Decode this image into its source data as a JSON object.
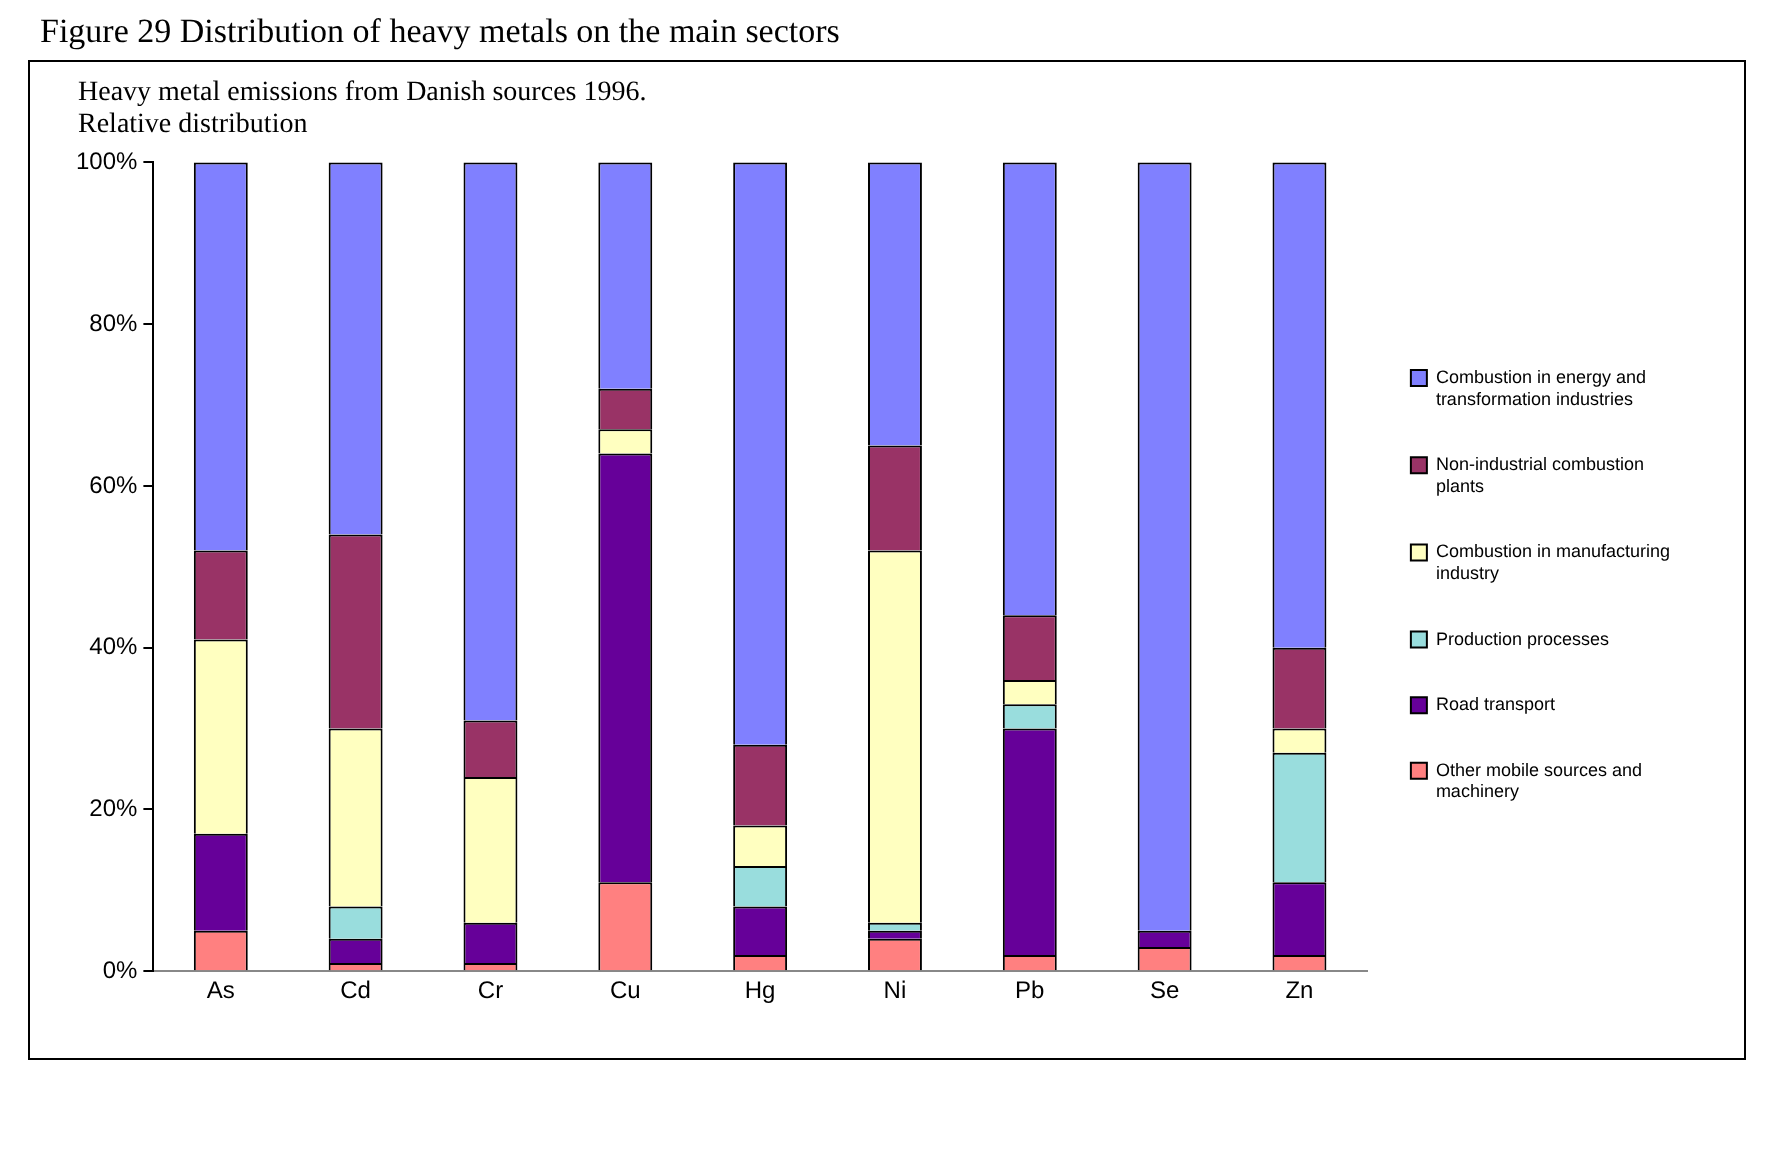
{
  "chart_data": {
    "type": "bar",
    "stacked": true,
    "title": "Figure 29 Distribution of heavy metals on the main sectors",
    "subtitle": "Heavy metal emissions from Danish sources 1996.",
    "annotations": [
      "Relative distribution"
    ],
    "categories": [
      "As",
      "Cd",
      "Cr",
      "Cu",
      "Hg",
      "Ni",
      "Pb",
      "Se",
      "Zn"
    ],
    "series": [
      {
        "name": "Other mobile sources and machinery",
        "color": "#ff8080",
        "values": [
          5,
          1,
          1,
          11,
          2,
          4,
          2,
          3,
          2
        ]
      },
      {
        "name": "Road transport",
        "color": "#660099",
        "values": [
          12,
          3,
          5,
          53,
          6,
          1,
          28,
          2,
          9
        ]
      },
      {
        "name": "Production processes",
        "color": "#99dddd",
        "values": [
          0,
          4,
          0,
          0,
          5,
          1,
          3,
          0,
          16
        ]
      },
      {
        "name": "Combustion in manufacturing industry",
        "color": "#ffffc0",
        "values": [
          24,
          22,
          18,
          3,
          5,
          46,
          3,
          0,
          3
        ]
      },
      {
        "name": "Non-industrial combustion plants",
        "color": "#993366",
        "values": [
          11,
          24,
          7,
          5,
          10,
          13,
          8,
          0,
          10
        ]
      },
      {
        "name": "Combustion in energy and transformation industries",
        "color": "#8080ff",
        "values": [
          48,
          46,
          69,
          28,
          72,
          35,
          56,
          95,
          60
        ]
      }
    ],
    "ylim": [
      0,
      100
    ],
    "yticks": [
      {
        "value": 0,
        "label": "0%"
      },
      {
        "value": 20,
        "label": "20%"
      },
      {
        "value": 40,
        "label": "40%"
      },
      {
        "value": 60,
        "label": "60%"
      },
      {
        "value": 80,
        "label": "80%"
      },
      {
        "value": 100,
        "label": "100%"
      }
    ],
    "grid": false,
    "legend": "right"
  }
}
